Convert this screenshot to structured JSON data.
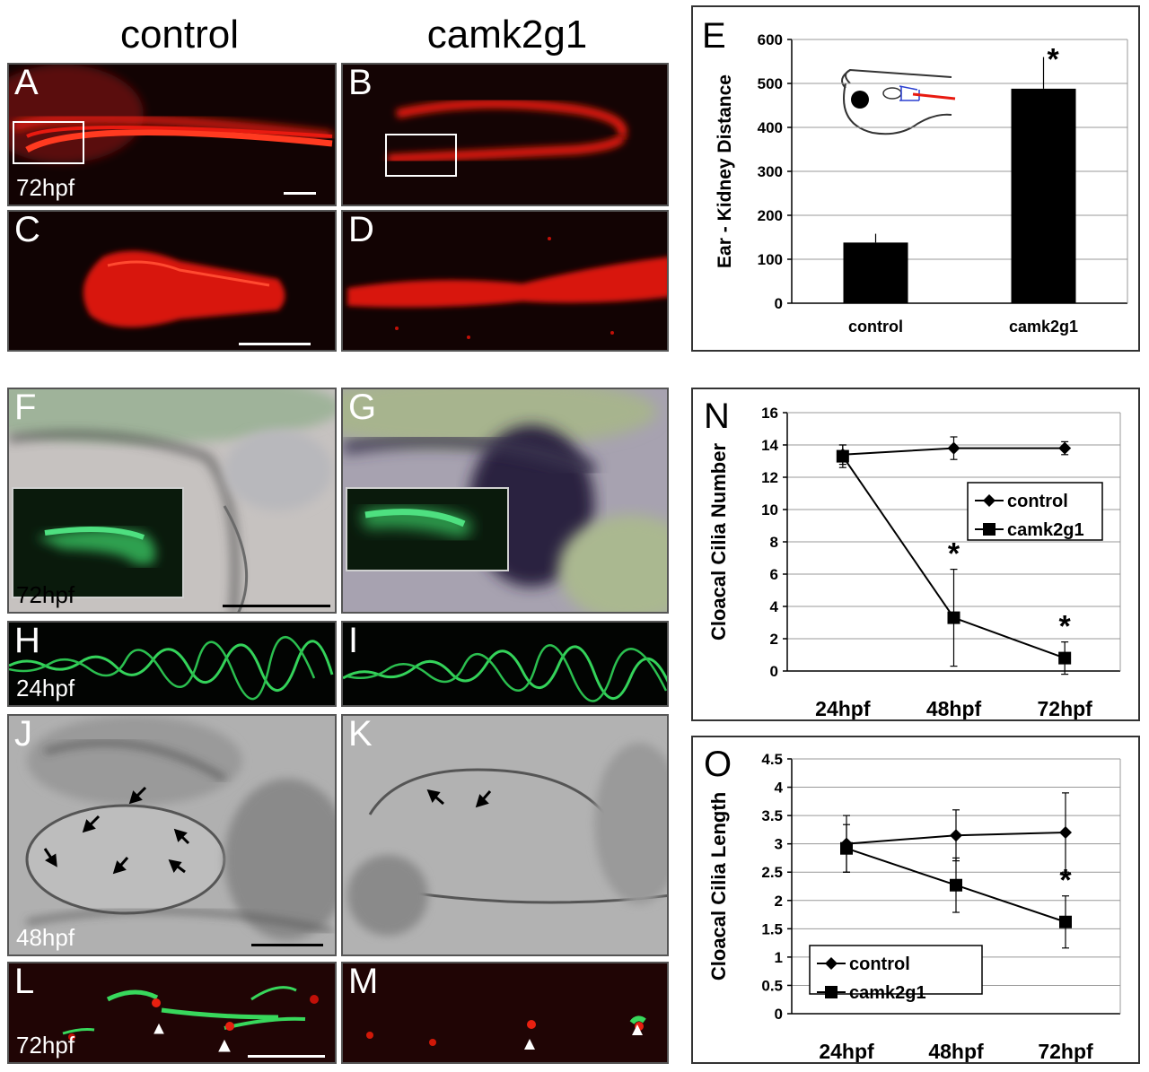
{
  "figure": {
    "columns": {
      "control": "control",
      "camk2g1": "camk2g1"
    },
    "panels": {
      "A": {
        "letter": "A",
        "stage": "72hpf"
      },
      "B": {
        "letter": "B"
      },
      "C": {
        "letter": "C"
      },
      "D": {
        "letter": "D"
      },
      "F": {
        "letter": "F",
        "stage": "72hpf"
      },
      "G": {
        "letter": "G"
      },
      "H": {
        "letter": "H",
        "stage": "24hpf"
      },
      "I": {
        "letter": "I"
      },
      "J": {
        "letter": "J",
        "stage": "48hpf"
      },
      "K": {
        "letter": "K"
      },
      "L": {
        "letter": "L",
        "stage": "72hpf"
      },
      "M": {
        "letter": "M"
      }
    },
    "colors": {
      "fluor_red": "#e81a10",
      "fluor_green": "#2fd85a",
      "dark_bg": "#140404"
    }
  },
  "chart_data": [
    {
      "panel": "E",
      "type": "bar",
      "categories": [
        "control",
        "camk2g1"
      ],
      "values": [
        138,
        488
      ],
      "errors": [
        20,
        72
      ],
      "significance": [
        "",
        "*"
      ],
      "title": "",
      "xlabel": "",
      "ylabel": "Ear - Kidney Distance",
      "ylim": [
        0,
        600
      ],
      "yticks": [
        0,
        100,
        200,
        300,
        400,
        500,
        600
      ],
      "grid": true,
      "bar_color": "#000000"
    },
    {
      "panel": "N",
      "type": "line",
      "x": [
        "24hpf",
        "48hpf",
        "72hpf"
      ],
      "series": [
        {
          "name": "control",
          "marker": "diamond",
          "values": [
            13.4,
            13.8,
            13.8
          ],
          "errors": [
            0.6,
            0.7,
            0.4
          ]
        },
        {
          "name": "camk2g1",
          "marker": "square",
          "values": [
            13.3,
            3.3,
            0.8
          ],
          "errors": [
            0.7,
            3.0,
            1.0
          ]
        }
      ],
      "significance": [
        "",
        "*",
        "*"
      ],
      "ylabel": "Cloacal Cilia Number",
      "ylim": [
        0,
        16
      ],
      "yticks": [
        0,
        2,
        4,
        6,
        8,
        10,
        12,
        14,
        16
      ],
      "grid": true,
      "legend": "center-right"
    },
    {
      "panel": "O",
      "type": "line",
      "x": [
        "24hpf",
        "48hpf",
        "72hpf"
      ],
      "series": [
        {
          "name": "control",
          "marker": "diamond",
          "values": [
            3.0,
            3.15,
            3.2
          ],
          "errors": [
            0.5,
            0.45,
            0.7
          ]
        },
        {
          "name": "camk2g1",
          "marker": "square",
          "values": [
            2.92,
            2.27,
            1.62
          ],
          "errors": [
            0.42,
            0.48,
            0.46
          ]
        }
      ],
      "significance": [
        "",
        "",
        "*"
      ],
      "ylabel": "Cloacal Cilia Length",
      "ylim": [
        0,
        4.5
      ],
      "yticks": [
        0,
        0.5,
        1,
        1.5,
        2,
        2.5,
        3,
        3.5,
        4,
        4.5
      ],
      "grid": true,
      "legend": "bottom-left"
    }
  ]
}
